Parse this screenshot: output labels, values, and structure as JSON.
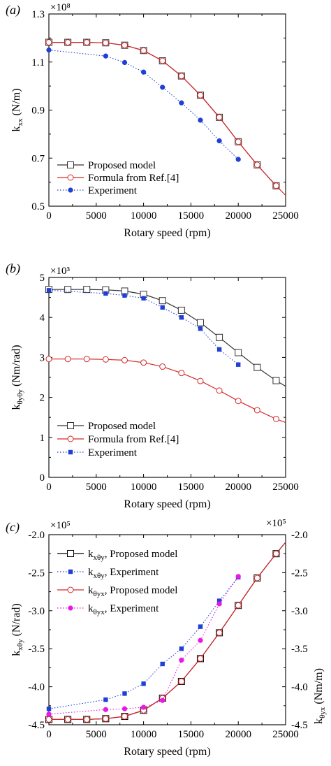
{
  "chart_data": [
    {
      "panel_label": "(a)",
      "type": "line",
      "multiplier": "×10⁸",
      "ylabel": "kxx (N/m)",
      "ylabel_main": "k",
      "ylabel_sub": "xx",
      "ylabel_unit": " (N/m)",
      "xlabel": "Rotary speed (rpm)",
      "xlim": [
        0,
        25000
      ],
      "ylim": [
        0.5,
        1.3
      ],
      "xticks": [
        0,
        5000,
        10000,
        15000,
        20000,
        25000
      ],
      "xtick_labels": [
        "0",
        "5000",
        "10000",
        "15000",
        "20000",
        "25000"
      ],
      "yticks": [
        0.5,
        0.7,
        0.9,
        1.1,
        1.3
      ],
      "ytick_labels": [
        "0.5",
        "0.7",
        "0.9",
        "1.1",
        "1.3"
      ],
      "legend_position": "bottom-left",
      "series": [
        {
          "name": "Proposed model",
          "color": "#333333",
          "line": "solid",
          "marker": "square-open",
          "x": [
            0,
            2000,
            4000,
            6000,
            8000,
            10000,
            12000,
            14000,
            16000,
            18000,
            20000,
            22000,
            24000
          ],
          "y": [
            1.182,
            1.182,
            1.182,
            1.18,
            1.17,
            1.148,
            1.105,
            1.042,
            0.962,
            0.87,
            0.768,
            0.672,
            0.585
          ]
        },
        {
          "name": "Formula from Ref.[4]",
          "color": "#d62728",
          "line": "solid",
          "marker": "circle-open",
          "x": [
            0,
            2000,
            4000,
            6000,
            8000,
            10000,
            12000,
            14000,
            16000,
            18000,
            20000,
            22000,
            24000,
            25000
          ],
          "y": [
            1.182,
            1.182,
            1.182,
            1.18,
            1.17,
            1.148,
            1.105,
            1.042,
            0.962,
            0.87,
            0.768,
            0.672,
            0.585,
            0.545
          ]
        },
        {
          "name": "Experiment",
          "color": "#1f3fd6",
          "line": "dotted",
          "marker": "circle-filled",
          "x": [
            0,
            6000,
            8000,
            10000,
            12000,
            14000,
            16000,
            18000,
            20000
          ],
          "y": [
            1.15,
            1.125,
            1.098,
            1.058,
            0.995,
            0.93,
            0.858,
            0.772,
            0.695
          ]
        }
      ]
    },
    {
      "panel_label": "(b)",
      "type": "line",
      "multiplier": "×10³",
      "ylabel": "kθyθy (Nm/rad)",
      "ylabel_main": "k",
      "ylabel_sub": "θyθy",
      "ylabel_unit": " (Nm/rad)",
      "xlabel": "Rotary speed (rpm)",
      "xlim": [
        0,
        25000
      ],
      "ylim": [
        0,
        5
      ],
      "xticks": [
        0,
        5000,
        10000,
        15000,
        20000,
        25000
      ],
      "xtick_labels": [
        "0",
        "5000",
        "10000",
        "15000",
        "20000",
        "25000"
      ],
      "yticks": [
        0,
        1,
        2,
        3,
        4,
        5
      ],
      "ytick_labels": [
        "0",
        "1",
        "2",
        "3",
        "4",
        "5"
      ],
      "legend_position": "bottom-left",
      "series": [
        {
          "name": "Proposed model",
          "color": "#333333",
          "line": "solid",
          "marker": "square-open",
          "x": [
            0,
            2000,
            4000,
            6000,
            8000,
            10000,
            12000,
            14000,
            16000,
            18000,
            20000,
            22000,
            24000,
            25000
          ],
          "y": [
            4.7,
            4.7,
            4.7,
            4.69,
            4.66,
            4.58,
            4.42,
            4.18,
            3.87,
            3.5,
            3.12,
            2.75,
            2.42,
            2.28
          ]
        },
        {
          "name": "Formula from Ref.[4]",
          "color": "#d62728",
          "line": "solid",
          "marker": "circle-open",
          "x": [
            0,
            2000,
            4000,
            6000,
            8000,
            10000,
            12000,
            14000,
            16000,
            18000,
            20000,
            22000,
            24000,
            25000
          ],
          "y": [
            2.96,
            2.96,
            2.96,
            2.95,
            2.93,
            2.87,
            2.77,
            2.61,
            2.41,
            2.17,
            1.91,
            1.68,
            1.46,
            1.37
          ]
        },
        {
          "name": "Experiment",
          "color": "#1f3fd6",
          "line": "dotted",
          "marker": "square-filled",
          "x": [
            0,
            6000,
            8000,
            10000,
            12000,
            14000,
            16000,
            18000,
            20000
          ],
          "y": [
            4.68,
            4.6,
            4.55,
            4.48,
            4.25,
            4.0,
            3.72,
            3.2,
            2.82
          ]
        }
      ]
    },
    {
      "panel_label": "(c)",
      "type": "line",
      "multiplier_left": "×10⁵",
      "multiplier_right": "×10⁵",
      "ylabel": "kxθy (N/rad)",
      "ylabel_main": "k",
      "ylabel_sub": "xθy",
      "ylabel_unit": " (N/rad)",
      "ylabel_right": "kθyx (Nm/m)",
      "ylabel_right_main": "k",
      "ylabel_right_sub": "θyx",
      "ylabel_right_unit": " (Nm/m)",
      "xlabel": "Rotary speed (rpm)",
      "xlim": [
        0,
        25000
      ],
      "ylim": [
        -4.5,
        -2.0
      ],
      "xticks": [
        0,
        5000,
        10000,
        15000,
        20000,
        25000
      ],
      "xtick_labels": [
        "0",
        "5000",
        "10000",
        "15000",
        "20000",
        "25000"
      ],
      "yticks": [
        -4.5,
        -4.0,
        -3.5,
        -3.0,
        -2.5,
        -2.0
      ],
      "ytick_labels": [
        "-4.5",
        "-4.0",
        "-3.5",
        "-3.0",
        "-2.5",
        "-2.0"
      ],
      "legend_position": "top-left",
      "series": [
        {
          "name": "kxθy, Proposed model",
          "name_main": "k",
          "name_sub": "xθy",
          "name_rest": ", Proposed model",
          "color": "#000000",
          "line": "solid",
          "marker": "square-open",
          "x": [
            0,
            2000,
            4000,
            6000,
            8000,
            10000,
            12000,
            14000,
            16000,
            18000,
            20000,
            22000,
            24000,
            25000
          ],
          "y": [
            -4.43,
            -4.43,
            -4.43,
            -4.42,
            -4.39,
            -4.31,
            -4.15,
            -3.93,
            -3.63,
            -3.29,
            -2.93,
            -2.57,
            -2.25,
            -2.1
          ]
        },
        {
          "name": "kxθy, Experiment",
          "name_main": "k",
          "name_sub": "xθy",
          "name_rest": ", Experiment",
          "color": "#1f3fd6",
          "line": "dotted",
          "marker": "square-filled",
          "x": [
            0,
            6000,
            8000,
            10000,
            12000,
            14000,
            16000,
            18000,
            20000
          ],
          "y": [
            -4.29,
            -4.17,
            -4.09,
            -3.96,
            -3.7,
            -3.5,
            -3.21,
            -2.87,
            -2.56
          ]
        },
        {
          "name": "kθyx, Proposed model",
          "name_main": "k",
          "name_sub": "θyx",
          "name_rest": ", Proposed model",
          "color": "#d62728",
          "line": "solid",
          "marker": "circle-open",
          "x": [
            0,
            2000,
            4000,
            6000,
            8000,
            10000,
            12000,
            14000,
            16000,
            18000,
            20000,
            22000,
            24000,
            25000
          ],
          "y": [
            -4.43,
            -4.43,
            -4.43,
            -4.42,
            -4.39,
            -4.31,
            -4.15,
            -3.93,
            -3.63,
            -3.29,
            -2.93,
            -2.57,
            -2.25,
            -2.1
          ]
        },
        {
          "name": "kθyx, Experiment",
          "name_main": "k",
          "name_sub": "θyx",
          "name_rest": ", Experiment",
          "color": "#e619e6",
          "line": "dotted",
          "marker": "circle-filled",
          "x": [
            0,
            6000,
            8000,
            10000,
            12000,
            14000,
            16000,
            18000,
            20000
          ],
          "y": [
            -4.36,
            -4.3,
            -4.29,
            -4.27,
            -4.18,
            -3.65,
            -3.39,
            -2.91,
            -2.55
          ]
        }
      ]
    }
  ]
}
